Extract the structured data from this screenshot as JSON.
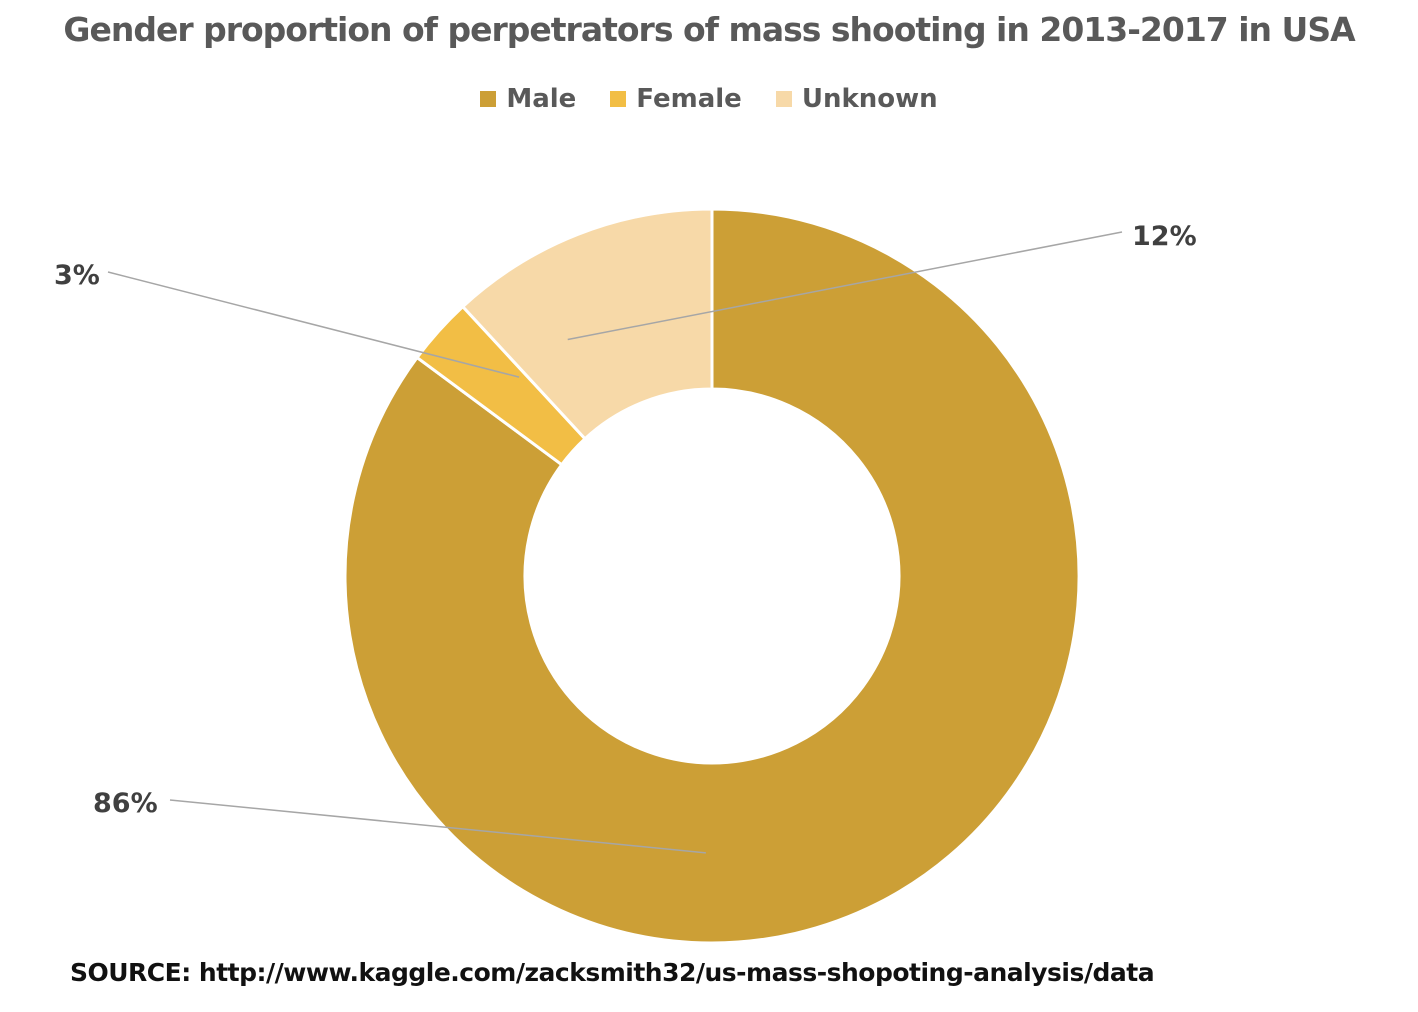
{
  "chart_data": {
    "type": "pie",
    "title": "Gender proportion of perpetrators of mass shooting in 2013-2017 in USA",
    "donut": true,
    "categories": [
      "Male",
      "Female",
      "Unknown"
    ],
    "values": [
      86,
      3,
      12
    ],
    "data_labels": [
      "86%",
      "3%",
      "12%"
    ],
    "colors": [
      "#CC9F36",
      "#F2BE45",
      "#F7D9A8"
    ],
    "legend": "top",
    "start_angle": "12 o'clock, clockwise"
  },
  "source": "SOURCE: http://www.kaggle.com/zacksmith32/us-mass-shopoting-analysis/data"
}
